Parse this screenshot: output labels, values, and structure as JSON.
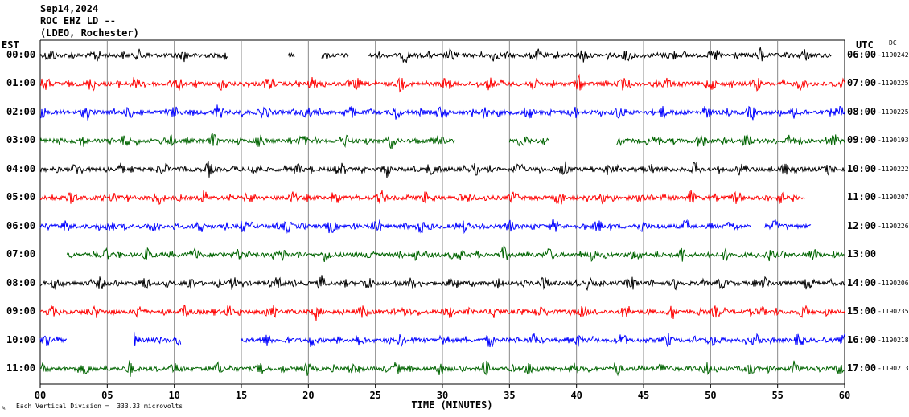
{
  "header": {
    "date": "Sep14,2024",
    "station": "ROC EHZ LD --",
    "network": "(LDEO, Rochester)"
  },
  "left_timezone": "EST",
  "right_timezone": "UTC",
  "dc_label": "DC",
  "footer_note_icon": "pencil-icon",
  "footer_note": "Each Vertical Division =  333.33 microvolts",
  "chart_data": {
    "type": "line",
    "title": "",
    "xlabel": "TIME (MINUTES)",
    "ylabel": "",
    "xlim": [
      0,
      60
    ],
    "x_ticks": [
      "00",
      "05",
      "10",
      "15",
      "20",
      "25",
      "30",
      "35",
      "40",
      "45",
      "50",
      "55",
      "60"
    ],
    "grid": "vertical lines every 5 minutes",
    "colors": [
      "#000000",
      "#ff0000",
      "#0000ff",
      "#006400"
    ],
    "rows": [
      {
        "est": "00:00",
        "utc": "06:00",
        "dc": "-1190242",
        "color": "#000000",
        "data_start": 0.0,
        "data_end": 59.0,
        "gaps": [
          [
            14.0,
            18.5
          ],
          [
            19.0,
            21.0
          ],
          [
            23.0,
            24.5
          ]
        ]
      },
      {
        "est": "01:00",
        "utc": "07:00",
        "dc": "-1190225",
        "color": "#ff0000",
        "data_start": 0.0,
        "data_end": 60.0,
        "gaps": []
      },
      {
        "est": "02:00",
        "utc": "08:00",
        "dc": "-1190225",
        "color": "#0000ff",
        "data_start": 0.0,
        "data_end": 60.0,
        "gaps": []
      },
      {
        "est": "03:00",
        "utc": "09:00",
        "dc": "-1190193",
        "color": "#006400",
        "data_start": 0.0,
        "data_end": 60.0,
        "gaps": [
          [
            31.0,
            35.0
          ],
          [
            38.0,
            43.0
          ]
        ]
      },
      {
        "est": "04:00",
        "utc": "10:00",
        "dc": "-1190222",
        "color": "#000000",
        "data_start": 0.0,
        "data_end": 60.0,
        "gaps": []
      },
      {
        "est": "05:00",
        "utc": "11:00",
        "dc": "-1190207",
        "color": "#ff0000",
        "data_start": 0.0,
        "data_end": 57.0,
        "gaps": []
      },
      {
        "est": "06:00",
        "utc": "12:00",
        "dc": "-1190226",
        "color": "#0000ff",
        "data_start": 0.0,
        "data_end": 57.5,
        "gaps": [
          [
            53.0,
            54.0
          ]
        ]
      },
      {
        "est": "07:00",
        "utc": "13:00",
        "dc": "",
        "color": "#006400",
        "data_start": 2.0,
        "data_end": 60.0,
        "gaps": []
      },
      {
        "est": "08:00",
        "utc": "14:00",
        "dc": "-1190206",
        "color": "#000000",
        "data_start": 0.0,
        "data_end": 60.0,
        "gaps": []
      },
      {
        "est": "09:00",
        "utc": "15:00",
        "dc": "-1190235",
        "color": "#ff0000",
        "data_start": 0.0,
        "data_end": 60.0,
        "gaps": []
      },
      {
        "est": "10:00",
        "utc": "16:00",
        "dc": "-1190218",
        "color": "#0000ff",
        "data_start": 0.0,
        "data_end": 60.0,
        "gaps": [
          [
            2.0,
            7.0
          ],
          [
            10.5,
            15.0
          ]
        ]
      },
      {
        "est": "11:00",
        "utc": "17:00",
        "dc": "-1190213",
        "color": "#006400",
        "data_start": 0.0,
        "data_end": 60.0,
        "gaps": []
      }
    ]
  }
}
